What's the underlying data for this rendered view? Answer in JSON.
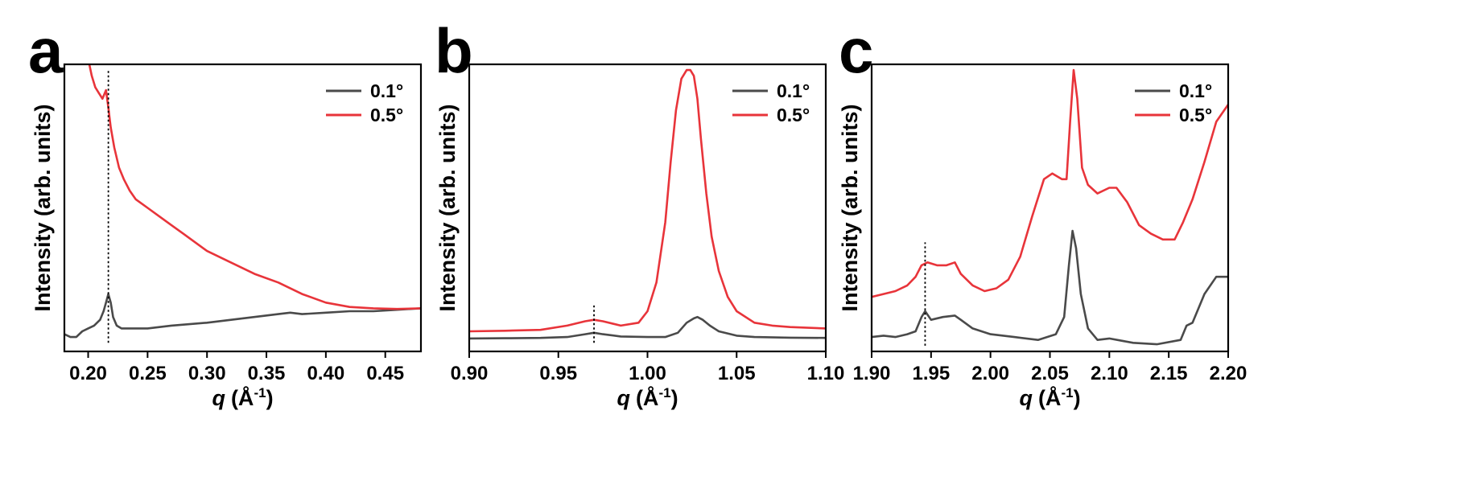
{
  "colors": {
    "series_0_1": "#4a4a4a",
    "series_0_5": "#e8343a",
    "marker": "#000000"
  },
  "chart_data": [
    {
      "panel": "a",
      "type": "line",
      "xlabel_symbol": "q",
      "xlabel_unit": "(Å",
      "xlabel_exp": "-1",
      "xlabel_close": ")",
      "ylabel": "Intensity (arb. units)",
      "xlim": [
        0.18,
        0.48
      ],
      "ylim": [
        0,
        1
      ],
      "xticks": [
        0.2,
        0.25,
        0.3,
        0.35,
        0.4,
        0.45
      ],
      "xtick_labels": [
        "0.20",
        "0.25",
        "0.30",
        "0.35",
        "0.40",
        "0.45"
      ],
      "marker_x": 0.217,
      "marker_y": [
        0.03,
        0.98
      ],
      "legend": [
        "0.1°",
        "0.5°"
      ],
      "series": [
        {
          "name": "0.1°",
          "x": [
            0.18,
            0.185,
            0.19,
            0.195,
            0.2,
            0.205,
            0.21,
            0.213,
            0.215,
            0.217,
            0.219,
            0.221,
            0.224,
            0.228,
            0.235,
            0.25,
            0.27,
            0.3,
            0.33,
            0.36,
            0.37,
            0.38,
            0.4,
            0.42,
            0.44,
            0.46,
            0.48
          ],
          "values": [
            0.06,
            0.05,
            0.05,
            0.07,
            0.08,
            0.09,
            0.11,
            0.14,
            0.17,
            0.2,
            0.17,
            0.12,
            0.09,
            0.08,
            0.08,
            0.08,
            0.09,
            0.1,
            0.115,
            0.13,
            0.135,
            0.13,
            0.135,
            0.14,
            0.14,
            0.145,
            0.15
          ]
        },
        {
          "name": "0.5°",
          "x": [
            0.2,
            0.203,
            0.206,
            0.209,
            0.212,
            0.215,
            0.217,
            0.219,
            0.222,
            0.226,
            0.23,
            0.235,
            0.24,
            0.25,
            0.26,
            0.27,
            0.28,
            0.3,
            0.32,
            0.34,
            0.36,
            0.38,
            0.4,
            0.42,
            0.44,
            0.46,
            0.48
          ],
          "values": [
            1.02,
            0.96,
            0.92,
            0.9,
            0.88,
            0.91,
            0.85,
            0.78,
            0.71,
            0.64,
            0.6,
            0.56,
            0.53,
            0.5,
            0.47,
            0.44,
            0.41,
            0.35,
            0.31,
            0.27,
            0.24,
            0.2,
            0.17,
            0.155,
            0.15,
            0.148,
            0.15
          ]
        }
      ]
    },
    {
      "panel": "b",
      "type": "line",
      "xlabel_symbol": "q",
      "xlabel_unit": "(Å",
      "xlabel_exp": "-1",
      "xlabel_close": ")",
      "ylabel": "Intensity (arb. units)",
      "xlim": [
        0.9,
        1.1
      ],
      "ylim": [
        0,
        1
      ],
      "xticks": [
        0.9,
        0.95,
        1.0,
        1.05,
        1.1
      ],
      "xtick_labels": [
        "0.90",
        "0.95",
        "1.00",
        "1.05",
        "1.10"
      ],
      "marker_x": 0.97,
      "marker_y": [
        0.03,
        0.16
      ],
      "legend": [
        "0.1°",
        "0.5°"
      ],
      "series": [
        {
          "name": "0.1°",
          "x": [
            0.9,
            0.92,
            0.94,
            0.955,
            0.965,
            0.97,
            0.975,
            0.985,
            1.0,
            1.01,
            1.017,
            1.022,
            1.026,
            1.028,
            1.031,
            1.035,
            1.04,
            1.05,
            1.06,
            1.08,
            1.1
          ],
          "values": [
            0.045,
            0.046,
            0.047,
            0.05,
            0.06,
            0.065,
            0.06,
            0.052,
            0.05,
            0.05,
            0.065,
            0.1,
            0.115,
            0.12,
            0.11,
            0.09,
            0.07,
            0.055,
            0.05,
            0.048,
            0.047
          ]
        },
        {
          "name": "0.5°",
          "x": [
            0.9,
            0.92,
            0.94,
            0.955,
            0.965,
            0.97,
            0.975,
            0.985,
            0.995,
            1.0,
            1.005,
            1.01,
            1.013,
            1.016,
            1.019,
            1.022,
            1.024,
            1.026,
            1.028,
            1.03,
            1.033,
            1.036,
            1.04,
            1.045,
            1.05,
            1.06,
            1.07,
            1.08,
            1.1
          ],
          "values": [
            0.07,
            0.072,
            0.075,
            0.09,
            0.105,
            0.11,
            0.105,
            0.09,
            0.1,
            0.14,
            0.24,
            0.45,
            0.66,
            0.84,
            0.95,
            0.98,
            0.98,
            0.96,
            0.88,
            0.74,
            0.55,
            0.4,
            0.28,
            0.19,
            0.14,
            0.1,
            0.09,
            0.085,
            0.08
          ]
        }
      ]
    },
    {
      "panel": "c",
      "type": "line",
      "xlabel_symbol": "q",
      "xlabel_unit": "(Å",
      "xlabel_exp": "-1",
      "xlabel_close": ")",
      "ylabel": "Intensity (arb. units)",
      "xlim": [
        1.9,
        2.2
      ],
      "ylim": [
        0,
        1
      ],
      "xticks": [
        1.9,
        1.95,
        2.0,
        2.05,
        2.1,
        2.15,
        2.2
      ],
      "xtick_labels": [
        "1.90",
        "1.95",
        "2.00",
        "2.05",
        "2.10",
        "2.15",
        "2.20"
      ],
      "marker_x": 1.945,
      "marker_y": [
        0.02,
        0.38
      ],
      "legend": [
        "0.1°",
        "0.5°"
      ],
      "series": [
        {
          "name": "0.1°",
          "x": [
            1.9,
            1.91,
            1.92,
            1.93,
            1.937,
            1.942,
            1.945,
            1.95,
            1.96,
            1.97,
            1.975,
            1.985,
            2.0,
            2.02,
            2.04,
            2.055,
            2.062,
            2.066,
            2.069,
            2.072,
            2.076,
            2.082,
            2.09,
            2.1,
            2.12,
            2.14,
            2.16,
            2.165,
            2.17,
            2.18,
            2.19,
            2.2
          ],
          "values": [
            0.05,
            0.055,
            0.05,
            0.06,
            0.07,
            0.12,
            0.14,
            0.11,
            0.12,
            0.125,
            0.11,
            0.08,
            0.06,
            0.05,
            0.04,
            0.06,
            0.12,
            0.3,
            0.42,
            0.36,
            0.2,
            0.08,
            0.04,
            0.045,
            0.03,
            0.025,
            0.04,
            0.09,
            0.1,
            0.2,
            0.26,
            0.26
          ]
        },
        {
          "name": "0.5°",
          "x": [
            1.9,
            1.91,
            1.92,
            1.93,
            1.937,
            1.942,
            1.947,
            1.955,
            1.963,
            1.97,
            1.975,
            1.985,
            1.995,
            2.005,
            2.015,
            2.025,
            2.035,
            2.045,
            2.052,
            2.06,
            2.064,
            2.067,
            2.07,
            2.073,
            2.077,
            2.082,
            2.09,
            2.1,
            2.106,
            2.115,
            2.125,
            2.135,
            2.145,
            2.155,
            2.162,
            2.17,
            2.18,
            2.19,
            2.2
          ],
          "values": [
            0.19,
            0.2,
            0.21,
            0.23,
            0.26,
            0.3,
            0.31,
            0.3,
            0.3,
            0.31,
            0.27,
            0.23,
            0.21,
            0.22,
            0.25,
            0.33,
            0.47,
            0.6,
            0.62,
            0.6,
            0.6,
            0.8,
            0.98,
            0.88,
            0.64,
            0.58,
            0.55,
            0.57,
            0.57,
            0.52,
            0.44,
            0.41,
            0.39,
            0.39,
            0.45,
            0.53,
            0.66,
            0.8,
            0.86
          ]
        }
      ]
    }
  ]
}
